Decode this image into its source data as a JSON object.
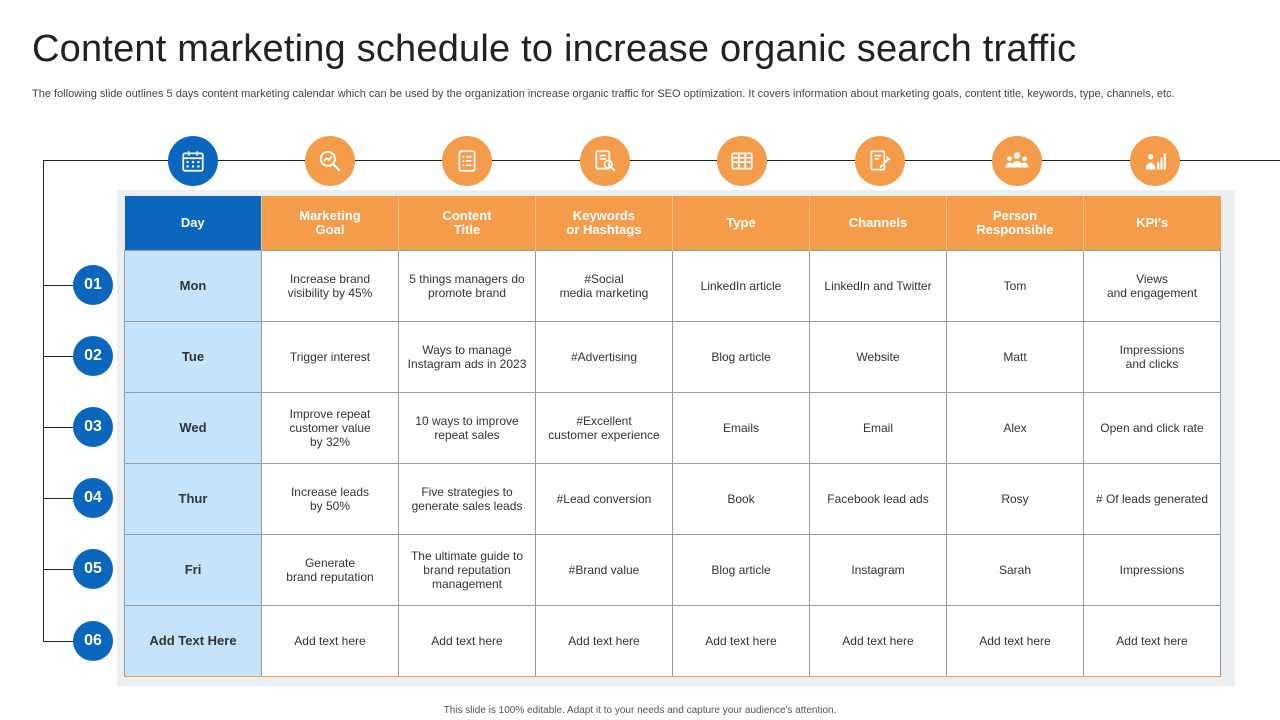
{
  "title": "Content marketing schedule to increase organic search traffic",
  "subtitle": "The following slide outlines 5 days content marketing calendar which can be used by the organization increase organic traffic for SEO optimization. It covers information about marketing goals, content title, keywords, type, channels, etc.",
  "footer": "This slide is 100% editable. Adapt it to your needs and capture your audience's attention.",
  "colors": {
    "blue": "#0b66bd",
    "orange": "#f59c4a",
    "light_blue": "#c5e3fb"
  },
  "header_icons": [
    "calendar-icon",
    "magnifier-chart-icon",
    "checklist-icon",
    "document-search-icon",
    "spreadsheet-icon",
    "document-edit-icon",
    "team-icon",
    "presenter-chart-icon"
  ],
  "row_numbers": [
    "01",
    "02",
    "03",
    "04",
    "05",
    "06"
  ],
  "table": {
    "headers": [
      "Day",
      "Marketing\nGoal",
      "Content\nTitle",
      "Keywords\nor Hashtags",
      "Type",
      "Channels",
      "Person\nResponsible",
      "KPI's"
    ],
    "rows": [
      [
        "Mon",
        "Increase brand\nvisibility by 45%",
        "5 things managers do\npromote brand",
        "#Social\nmedia marketing",
        "LinkedIn article",
        "LinkedIn and Twitter",
        "Tom",
        "Views\nand engagement"
      ],
      [
        "Tue",
        "Trigger interest",
        "Ways to manage\nInstagram ads in 2023",
        "#Advertising",
        "Blog article",
        "Website",
        "Matt",
        "Impressions\nand clicks"
      ],
      [
        "Wed",
        "Improve repeat\ncustomer value\nby 32%",
        "10 ways to improve\nrepeat sales",
        "#Excellent\ncustomer experience",
        "Emails",
        "Email",
        "Alex",
        "Open and click rate"
      ],
      [
        "Thur",
        "Increase leads\nby 50%",
        "Five strategies to\ngenerate sales leads",
        "#Lead conversion",
        "Book",
        "Facebook lead ads",
        "Rosy",
        "# Of leads generated"
      ],
      [
        "Fri",
        "Generate\nbrand reputation",
        "The ultimate guide to\nbrand reputation\nmanagement",
        "#Brand value",
        "Blog article",
        "Instagram",
        "Sarah",
        "Impressions"
      ],
      [
        "Add Text Here",
        "Add text here",
        "Add text here",
        "Add text here",
        "Add text here",
        "Add text here",
        "Add text here",
        "Add text here"
      ]
    ]
  }
}
